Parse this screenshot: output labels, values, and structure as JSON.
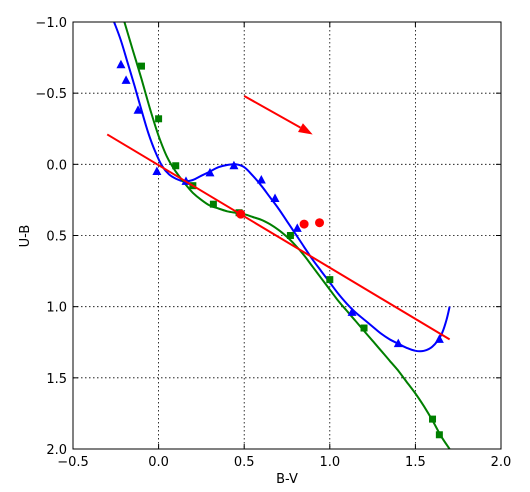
{
  "chart_data": {
    "type": "line",
    "xlabel": "B-V",
    "ylabel": "U-B",
    "xlim": [
      -0.5,
      2.0
    ],
    "ylim": [
      2.0,
      -1.0
    ],
    "y_inverted": true,
    "grid": true,
    "grid_style": "dotted",
    "xticks": [
      -0.5,
      0.0,
      0.5,
      1.0,
      1.5,
      2.0
    ],
    "xtick_labels": [
      "−0.5",
      "0.0",
      "0.5",
      "1.0",
      "1.5",
      "2.0"
    ],
    "yticks": [
      -1.0,
      -0.5,
      0.0,
      0.5,
      1.0,
      1.5,
      2.0
    ],
    "ytick_labels": [
      "−1.0",
      "−0.5",
      "0.0",
      "0.5",
      "1.0",
      "1.5",
      "2.0"
    ],
    "series": [
      {
        "kind": "curve",
        "color": "#0000ff",
        "x": [
          -0.26,
          -0.22,
          -0.18,
          -0.14,
          -0.1,
          -0.06,
          -0.02,
          0.02,
          0.06,
          0.1,
          0.15,
          0.2,
          0.25,
          0.3,
          0.35,
          0.4,
          0.45,
          0.5,
          0.55,
          0.6,
          0.65,
          0.7,
          0.75,
          0.8,
          0.85,
          0.9,
          0.95,
          1.0,
          1.05,
          1.1,
          1.15,
          1.2,
          1.25,
          1.3,
          1.35,
          1.4,
          1.45,
          1.5,
          1.55,
          1.6,
          1.65,
          1.68,
          1.7
        ],
        "y": [
          -1.0,
          -0.87,
          -0.71,
          -0.55,
          -0.38,
          -0.22,
          -0.09,
          0.01,
          0.07,
          0.1,
          0.12,
          0.11,
          0.08,
          0.05,
          0.02,
          0.005,
          0.0,
          0.02,
          0.08,
          0.15,
          0.23,
          0.31,
          0.4,
          0.49,
          0.58,
          0.67,
          0.75,
          0.83,
          0.91,
          0.98,
          1.04,
          1.09,
          1.14,
          1.19,
          1.23,
          1.26,
          1.29,
          1.31,
          1.31,
          1.28,
          1.2,
          1.1,
          1.0
        ]
      },
      {
        "kind": "curve",
        "color": "#007f00",
        "x": [
          -0.2,
          -0.15,
          -0.1,
          -0.05,
          0.0,
          0.05,
          0.1,
          0.15,
          0.2,
          0.25,
          0.3,
          0.35,
          0.4,
          0.45,
          0.5,
          0.55,
          0.6,
          0.65,
          0.7,
          0.75,
          0.8,
          0.85,
          0.9,
          0.95,
          1.0,
          1.05,
          1.1,
          1.15,
          1.2,
          1.25,
          1.3,
          1.35,
          1.4,
          1.45,
          1.5,
          1.55,
          1.6,
          1.65,
          1.7
        ],
        "y": [
          -1.0,
          -0.8,
          -0.6,
          -0.39,
          -0.2,
          -0.05,
          0.05,
          0.13,
          0.2,
          0.25,
          0.29,
          0.31,
          0.33,
          0.34,
          0.35,
          0.37,
          0.39,
          0.42,
          0.46,
          0.51,
          0.57,
          0.64,
          0.72,
          0.8,
          0.88,
          0.96,
          1.03,
          1.1,
          1.17,
          1.24,
          1.31,
          1.38,
          1.45,
          1.53,
          1.61,
          1.7,
          1.8,
          1.91,
          2.0
        ]
      },
      {
        "kind": "markers",
        "marker": "triangle",
        "color": "#0000ff",
        "x": [
          -0.22,
          -0.19,
          -0.12,
          -0.01,
          0.16,
          0.3,
          0.44,
          0.6,
          0.68,
          0.81,
          1.13,
          1.4,
          1.64
        ],
        "y": [
          -0.7,
          -0.59,
          -0.38,
          0.05,
          0.12,
          0.06,
          0.01,
          0.11,
          0.24,
          0.45,
          1.04,
          1.26,
          1.23
        ]
      },
      {
        "kind": "markers",
        "marker": "square",
        "color": "#007f00",
        "x": [
          -0.1,
          0.0,
          0.1,
          0.2,
          0.32,
          0.47,
          0.77,
          1.0,
          1.2,
          1.6,
          1.64
        ],
        "y": [
          -0.69,
          -0.32,
          0.01,
          0.15,
          0.28,
          0.34,
          0.5,
          0.81,
          1.15,
          1.79,
          1.9
        ]
      },
      {
        "kind": "line",
        "color": "#ff0000",
        "x": [
          -0.3,
          1.7
        ],
        "y": [
          -0.21,
          1.23
        ]
      },
      {
        "kind": "markers",
        "marker": "circle",
        "color": "#ff0000",
        "x": [
          0.48,
          0.85,
          0.94
        ],
        "y": [
          0.35,
          0.42,
          0.41
        ]
      },
      {
        "kind": "arrow",
        "color": "#ff0000",
        "x": [
          0.5,
          0.9
        ],
        "y": [
          -0.48,
          -0.21
        ]
      }
    ]
  }
}
